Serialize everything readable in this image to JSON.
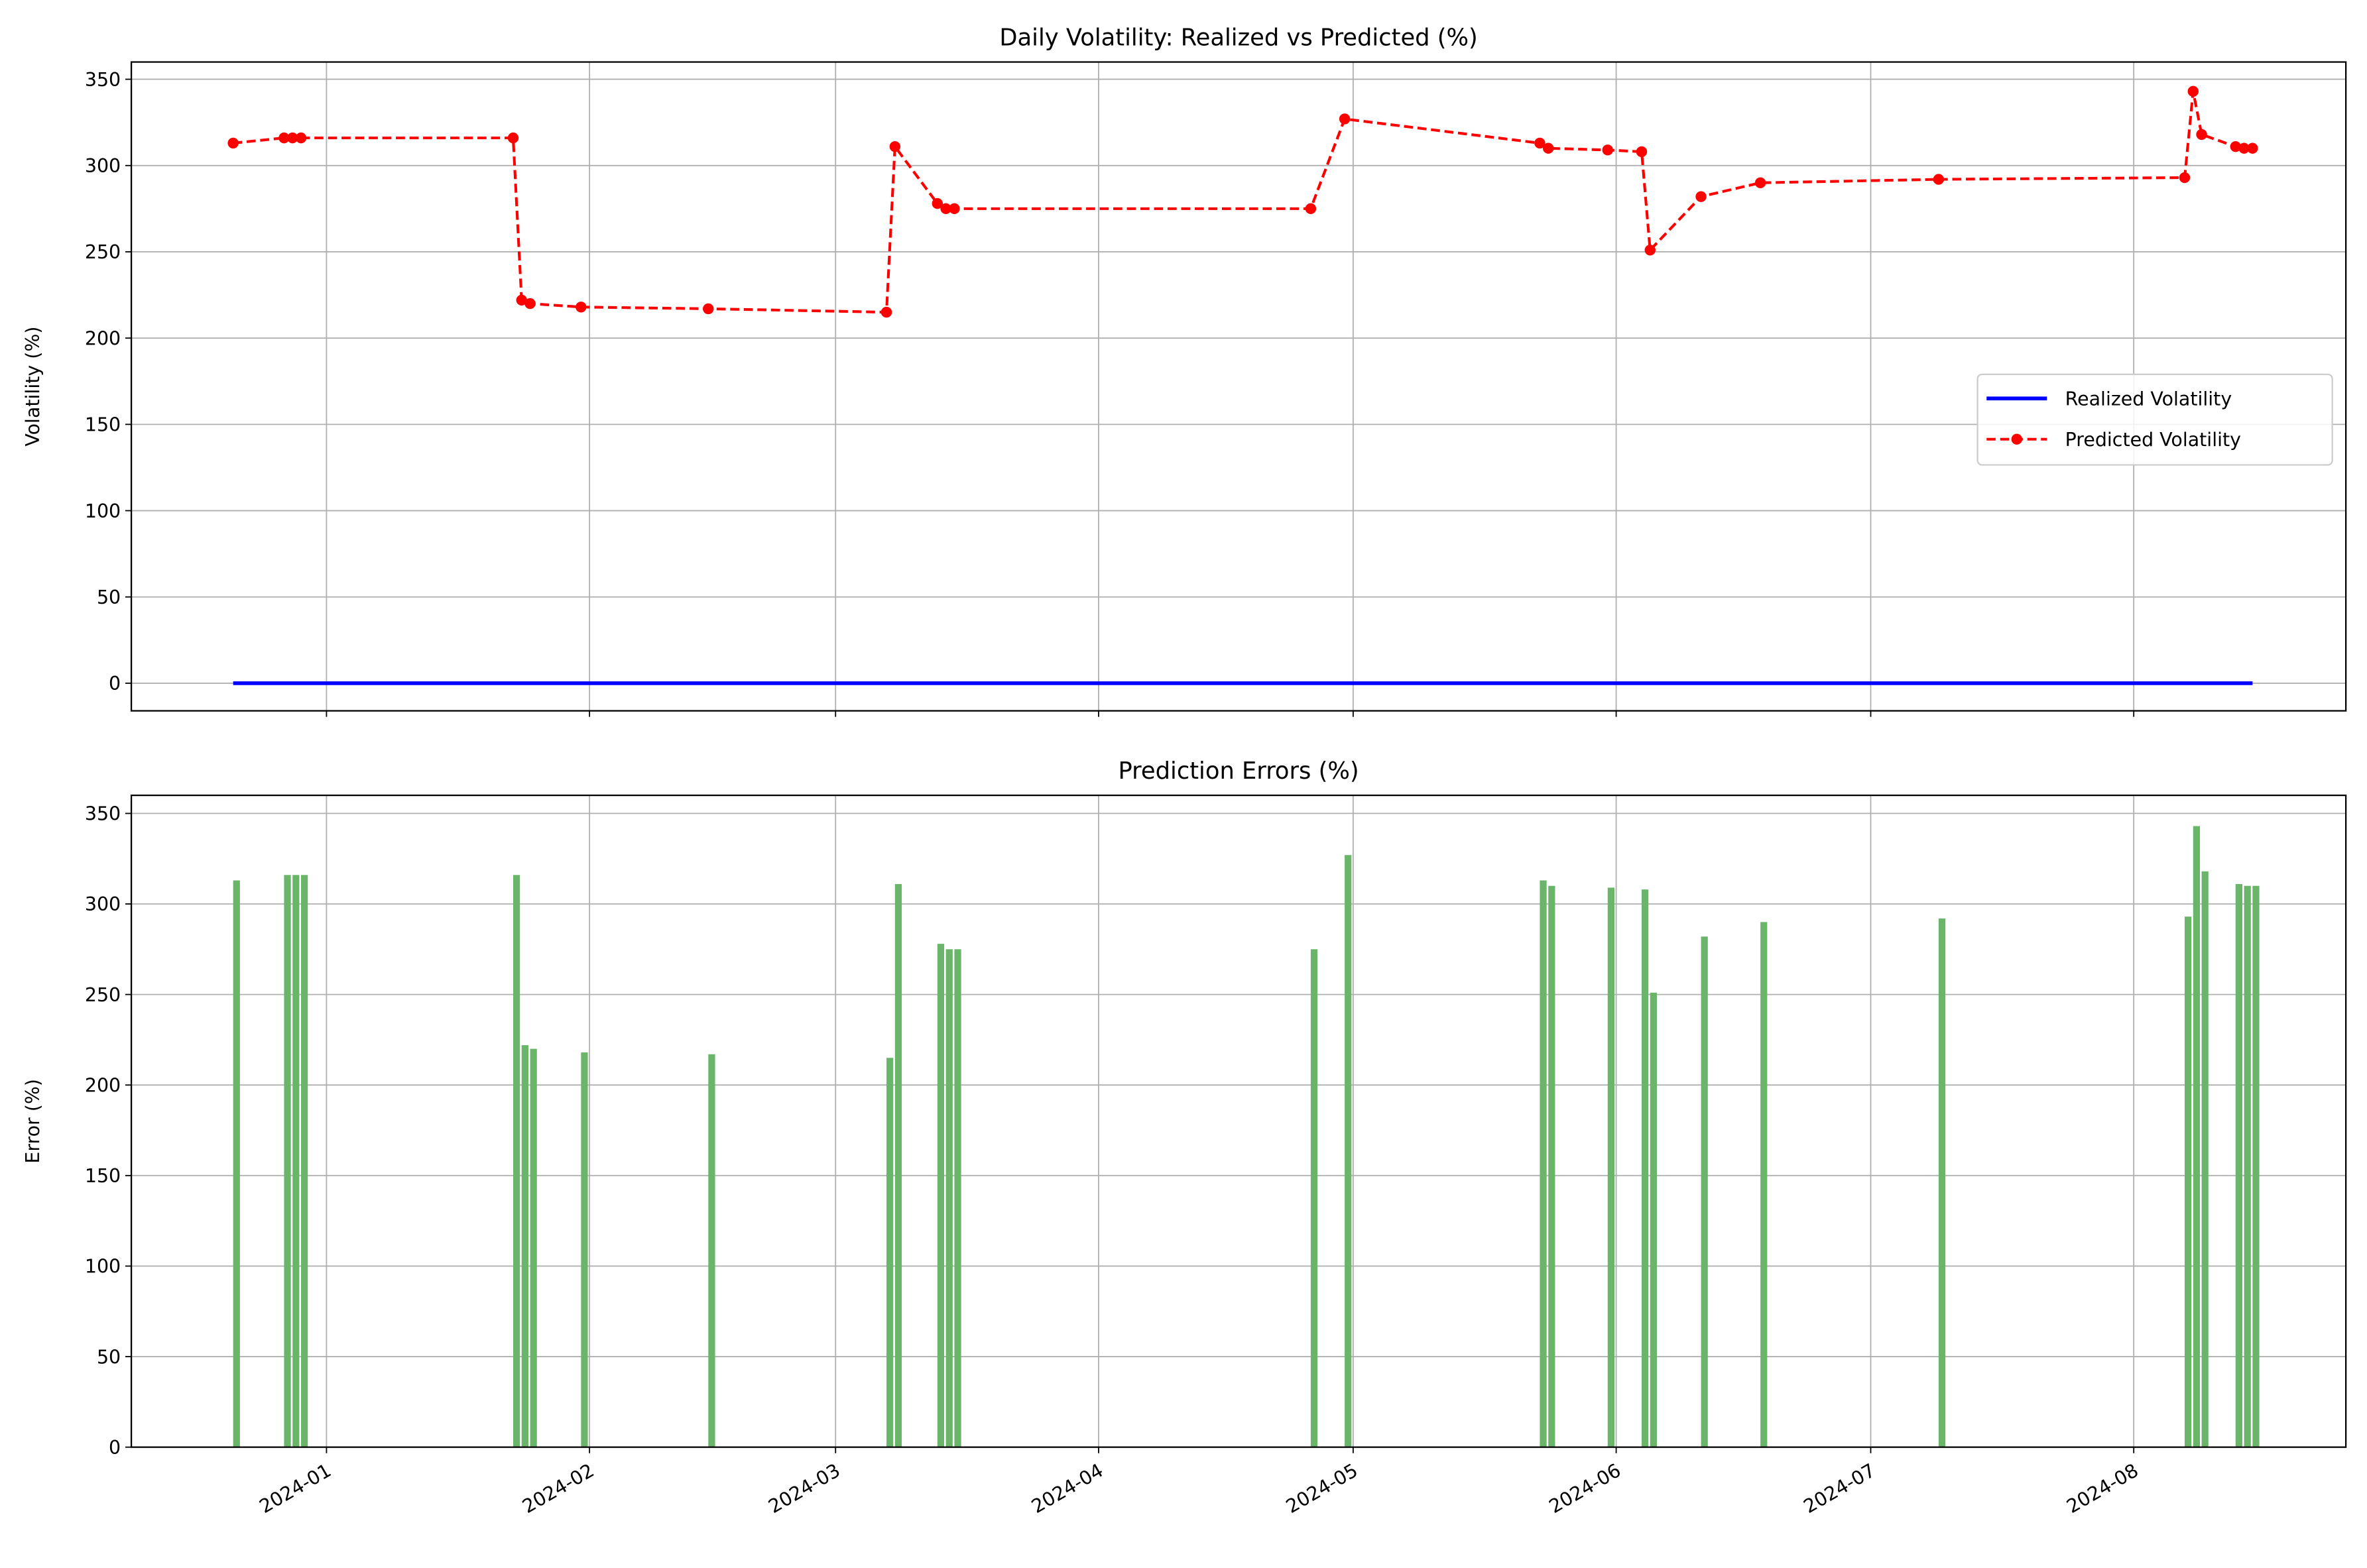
{
  "chart_data": [
    {
      "type": "line",
      "title": "Daily Volatility: Realized vs Predicted (%)",
      "ylabel": "Volatility (%)",
      "x": [
        "2023-12-21",
        "2023-12-27",
        "2023-12-28",
        "2023-12-29",
        "2024-01-23",
        "2024-01-24",
        "2024-01-25",
        "2024-01-31",
        "2024-02-15",
        "2024-03-07",
        "2024-03-08",
        "2024-03-13",
        "2024-03-14",
        "2024-03-15",
        "2024-04-26",
        "2024-04-30",
        "2024-05-23",
        "2024-05-24",
        "2024-05-31",
        "2024-06-04",
        "2024-06-05",
        "2024-06-11",
        "2024-06-18",
        "2024-07-09",
        "2024-08-07",
        "2024-08-08",
        "2024-08-09",
        "2024-08-13",
        "2024-08-14",
        "2024-08-15"
      ],
      "series": [
        {
          "name": "Realized Volatility",
          "color": "#0000ff",
          "style": "solid",
          "values": [
            0,
            0,
            0,
            0,
            0,
            0,
            0,
            0,
            0,
            0,
            0,
            0,
            0,
            0,
            0,
            0,
            0,
            0,
            0,
            0,
            0,
            0,
            0,
            0,
            0,
            0,
            0,
            0,
            0,
            0
          ]
        },
        {
          "name": "Predicted Volatility",
          "color": "#ff0000",
          "style": "dashed-markers",
          "values": [
            313,
            316,
            316,
            316,
            316,
            222,
            220,
            218,
            217,
            215,
            311,
            278,
            275,
            275,
            275,
            327,
            313,
            310,
            309,
            308,
            251,
            282,
            290,
            292,
            293,
            343,
            318,
            311,
            310,
            310
          ]
        }
      ],
      "ylim": [
        -16,
        360
      ],
      "yticks": [
        0,
        50,
        100,
        150,
        200,
        250,
        300,
        350
      ],
      "grid": true,
      "legend": "center right"
    },
    {
      "type": "bar",
      "title": "Prediction Errors (%)",
      "ylabel": "Error (%)",
      "color": "#6ab56a",
      "x": [
        "2023-12-21",
        "2023-12-27",
        "2023-12-28",
        "2023-12-29",
        "2024-01-23",
        "2024-01-24",
        "2024-01-25",
        "2024-01-31",
        "2024-02-15",
        "2024-03-07",
        "2024-03-08",
        "2024-03-13",
        "2024-03-14",
        "2024-03-15",
        "2024-04-26",
        "2024-04-30",
        "2024-05-23",
        "2024-05-24",
        "2024-05-31",
        "2024-06-04",
        "2024-06-05",
        "2024-06-11",
        "2024-06-18",
        "2024-07-09",
        "2024-08-07",
        "2024-08-08",
        "2024-08-09",
        "2024-08-13",
        "2024-08-14",
        "2024-08-15"
      ],
      "values": [
        313,
        316,
        316,
        316,
        316,
        222,
        220,
        218,
        217,
        215,
        311,
        278,
        275,
        275,
        275,
        327,
        313,
        310,
        309,
        308,
        251,
        282,
        290,
        292,
        293,
        343,
        318,
        311,
        310,
        310
      ],
      "xlim": [
        "2023-12-09",
        "2024-08-26"
      ],
      "xticks": [
        {
          "value": "2024-01-01",
          "label": "2024-01"
        },
        {
          "value": "2024-02-01",
          "label": "2024-02"
        },
        {
          "value": "2024-03-01",
          "label": "2024-03"
        },
        {
          "value": "2024-04-01",
          "label": "2024-04"
        },
        {
          "value": "2024-05-01",
          "label": "2024-05"
        },
        {
          "value": "2024-06-01",
          "label": "2024-06"
        },
        {
          "value": "2024-07-01",
          "label": "2024-07"
        },
        {
          "value": "2024-08-01",
          "label": "2024-08"
        }
      ],
      "ylim": [
        0,
        360
      ],
      "yticks": [
        0,
        50,
        100,
        150,
        200,
        250,
        300,
        350
      ],
      "grid": true
    }
  ]
}
